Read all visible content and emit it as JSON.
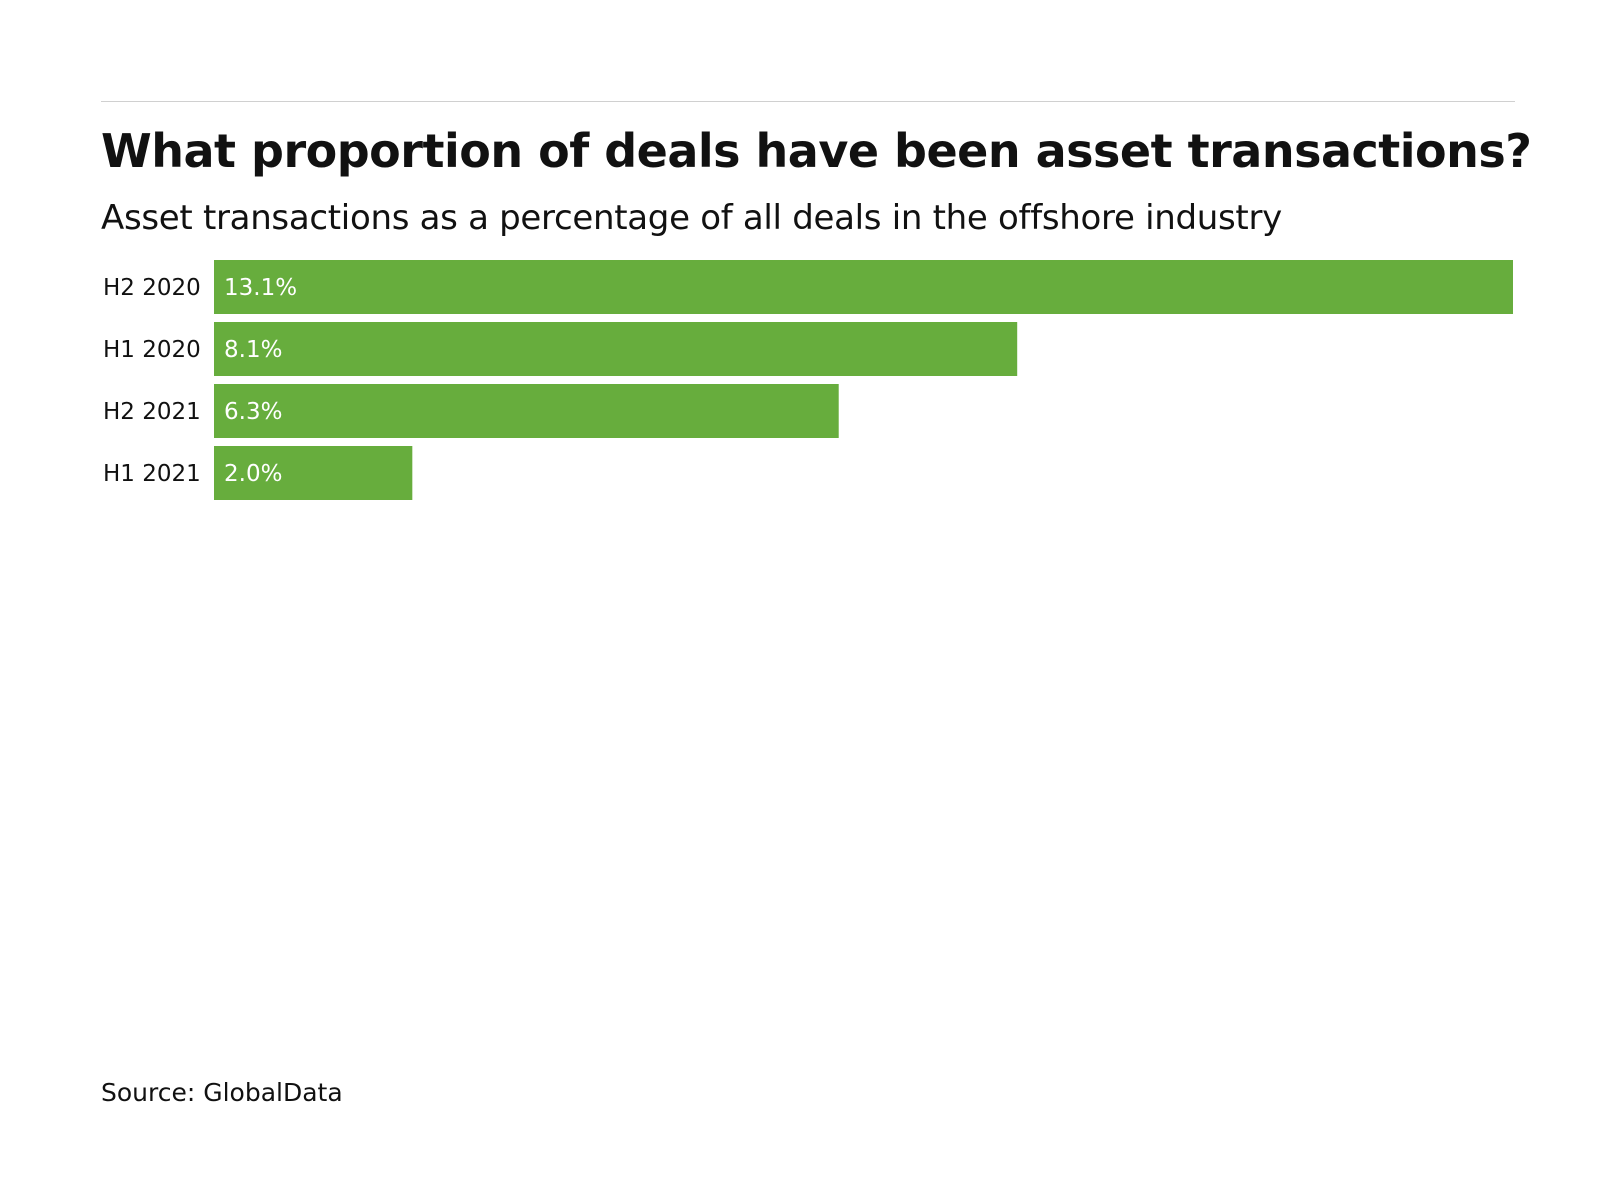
{
  "chart_data": {
    "type": "bar",
    "orientation": "horizontal",
    "title": "What proportion of deals have been asset transactions?",
    "subtitle": "Asset transactions as a percentage of all deals in the offshore industry",
    "categories": [
      "H2 2020",
      "H1 2020",
      "H2 2021",
      "H1 2021"
    ],
    "values": [
      13.1,
      8.1,
      6.3,
      2.0
    ],
    "data_labels": [
      "13.1%",
      "8.1%",
      "6.3%",
      "2.0%"
    ],
    "xlim": [
      0,
      13.1
    ],
    "grid": false,
    "bar_color": "#67ad3d",
    "label_color": "#ffffff"
  },
  "source": "Source: GlobalData"
}
